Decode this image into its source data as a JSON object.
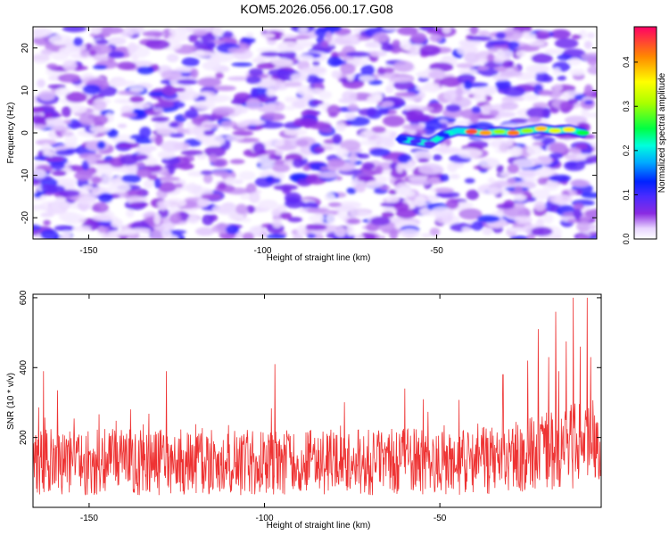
{
  "title": "KOM5.2026.056.00.17.G08",
  "chart_data": [
    {
      "type": "heatmap",
      "xlabel": "Height of straight line (km)",
      "ylabel": "Frequency (Hz)",
      "xlim": [
        -166,
        -4
      ],
      "ylim": [
        -25,
        25
      ],
      "xticks": [
        -150,
        -100,
        -50
      ],
      "yticks": [
        -20,
        -10,
        0,
        10,
        20
      ],
      "colorbar": {
        "label": "Normalized spectral amplitude",
        "range": [
          0.0,
          0.48
        ],
        "ticks": [
          0.0,
          0.1,
          0.2,
          0.3,
          0.4
        ]
      },
      "background_noise_amplitude": 0.07,
      "signal_track": {
        "description": "Strong narrow-band signal near 0 Hz",
        "x": [
          -60,
          -56,
          -52,
          -48,
          -44,
          -40,
          -36,
          -32,
          -28,
          -24,
          -20,
          -16,
          -12,
          -8
        ],
        "frequency": [
          -1.5,
          -2,
          -2.5,
          -0.5,
          0.5,
          0.3,
          0.0,
          0.3,
          0.0,
          0.5,
          1.0,
          0.5,
          0.8,
          0.0
        ],
        "amplitude": [
          0.12,
          0.1,
          0.09,
          0.12,
          0.2,
          0.44,
          0.4,
          0.3,
          0.42,
          0.3,
          0.38,
          0.34,
          0.36,
          0.25
        ]
      }
    },
    {
      "type": "line",
      "xlabel": "Height of straight line (km)",
      "ylabel": "SNR (10 * v/v)",
      "xlim": [
        -166,
        -4
      ],
      "ylim": [
        0,
        610
      ],
      "xticks": [
        -150,
        -100,
        -50
      ],
      "yticks": [
        200,
        400,
        600
      ],
      "series": [
        {
          "name": "SNR",
          "color": "#ee3333",
          "baseline_mean": 130,
          "x_peaks": [
            -163,
            -159,
            -128,
            -97,
            -60,
            -32,
            -25,
            -22,
            -19,
            -17,
            -14,
            -12,
            -10,
            -8,
            -7
          ],
          "y_peaks": [
            390,
            335,
            390,
            410,
            340,
            380,
            420,
            510,
            430,
            560,
            475,
            600,
            460,
            600,
            430
          ]
        }
      ]
    }
  ]
}
